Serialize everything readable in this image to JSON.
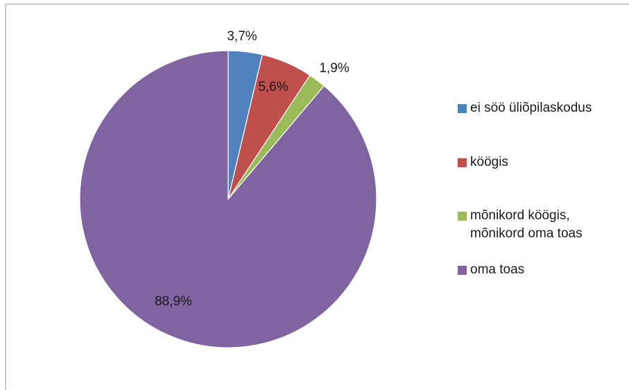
{
  "colors": {
    "border": "#8c8c8c",
    "background": "#ffffff"
  },
  "chart_data": {
    "type": "pie",
    "title": "",
    "legend_position": "right",
    "slices": [
      {
        "label": "ei söö üliõpilaskodus",
        "value": 3.7,
        "display": "3,7%",
        "color": "#4f81bd"
      },
      {
        "label": "köögis",
        "value": 5.6,
        "display": "5,6%",
        "color": "#c0504d"
      },
      {
        "label": "mõnikord köögis, mõnikord oma toas",
        "value": 1.9,
        "display": "1,9%",
        "color": "#9bbb59"
      },
      {
        "label": "oma toas",
        "value": 88.9,
        "display": "88,9%",
        "color": "#8064a2"
      }
    ]
  }
}
